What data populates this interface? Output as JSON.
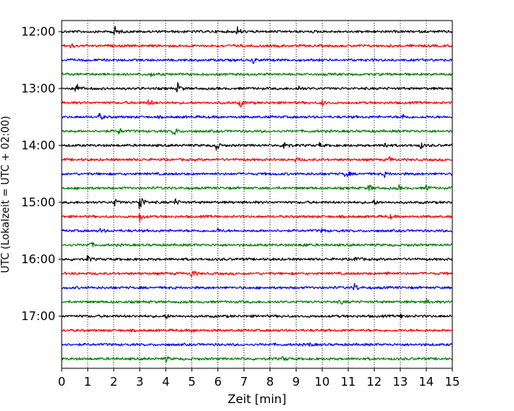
{
  "chart_data": {
    "type": "line",
    "title": "",
    "xlabel": "Zeit  [min]",
    "ylabel": "UTC (Lokalzeit = UTC + 02:00)",
    "xlim": [
      0,
      15
    ],
    "x_ticks": [
      0,
      1,
      2,
      3,
      4,
      5,
      6,
      7,
      8,
      9,
      10,
      11,
      12,
      13,
      14,
      15
    ],
    "y_tick_labels": [
      "12:00",
      "13:00",
      "14:00",
      "15:00",
      "16:00",
      "17:00"
    ],
    "grid": "vertical dotted lines at each minute",
    "trace_colors": [
      "#000000",
      "#ff0000",
      "#0000ff",
      "#008000"
    ],
    "traces": [
      {
        "start": "12:00",
        "color": "#000000",
        "events": [
          [
            2.0,
            1.0
          ],
          [
            6.75,
            0.55
          ]
        ]
      },
      {
        "start": "12:15",
        "color": "#ff0000",
        "events": [
          [
            0.35,
            0.35
          ]
        ]
      },
      {
        "start": "12:30",
        "color": "#0000ff",
        "events": [
          [
            7.35,
            0.4
          ]
        ]
      },
      {
        "start": "12:45",
        "color": "#008000",
        "events": [
          [
            3.4,
            0.3
          ]
        ]
      },
      {
        "start": "13:00",
        "color": "#000000",
        "events": [
          [
            0.55,
            0.8
          ],
          [
            4.45,
            0.7
          ],
          [
            9.1,
            0.35
          ]
        ]
      },
      {
        "start": "13:15",
        "color": "#ff0000",
        "events": [
          [
            3.35,
            0.5
          ],
          [
            6.85,
            0.6
          ],
          [
            10.0,
            0.35
          ]
        ]
      },
      {
        "start": "13:30",
        "color": "#0000ff",
        "events": [
          [
            1.45,
            0.45
          ],
          [
            13.1,
            0.35
          ]
        ]
      },
      {
        "start": "13:45",
        "color": "#008000",
        "events": [
          [
            2.2,
            0.45
          ],
          [
            4.3,
            0.75
          ]
        ]
      },
      {
        "start": "14:00",
        "color": "#000000",
        "events": [
          [
            5.9,
            0.85
          ],
          [
            8.55,
            1.0
          ],
          [
            9.9,
            0.3
          ],
          [
            12.4,
            0.4
          ],
          [
            13.8,
            0.35
          ]
        ]
      },
      {
        "start": "14:15",
        "color": "#ff0000",
        "events": [
          [
            9.0,
            0.3
          ],
          [
            12.6,
            0.3
          ]
        ]
      },
      {
        "start": "14:30",
        "color": "#0000ff",
        "events": [
          [
            10.9,
            0.55
          ],
          [
            12.4,
            0.3
          ]
        ]
      },
      {
        "start": "14:45",
        "color": "#008000",
        "events": [
          [
            11.8,
            0.5
          ],
          [
            12.9,
            0.4
          ],
          [
            14.0,
            0.4
          ]
        ]
      },
      {
        "start": "15:00",
        "color": "#000000",
        "events": [
          [
            2.0,
            0.6
          ],
          [
            3.0,
            1.6
          ],
          [
            4.35,
            0.45
          ],
          [
            12.0,
            0.3
          ]
        ]
      },
      {
        "start": "15:15",
        "color": "#ff0000",
        "events": [
          [
            3.0,
            0.6
          ],
          [
            12.6,
            0.25
          ]
        ]
      },
      {
        "start": "15:30",
        "color": "#0000ff",
        "events": [
          [
            1.5,
            0.3
          ],
          [
            6.0,
            0.25
          ],
          [
            10.0,
            0.25
          ]
        ]
      },
      {
        "start": "15:45",
        "color": "#008000",
        "events": [
          [
            1.1,
            0.35
          ],
          [
            9.3,
            0.25
          ]
        ]
      },
      {
        "start": "16:00",
        "color": "#000000",
        "events": [
          [
            1.0,
            0.45
          ],
          [
            11.3,
            0.45
          ]
        ]
      },
      {
        "start": "16:15",
        "color": "#ff0000",
        "events": [
          [
            5.0,
            0.6
          ],
          [
            12.5,
            0.3
          ]
        ]
      },
      {
        "start": "16:30",
        "color": "#0000ff",
        "events": [
          [
            11.25,
            0.55
          ]
        ]
      },
      {
        "start": "16:45",
        "color": "#008000",
        "events": [
          [
            10.7,
            0.3
          ],
          [
            14.0,
            0.3
          ]
        ]
      },
      {
        "start": "17:00",
        "color": "#000000",
        "events": [
          [
            4.0,
            0.3
          ],
          [
            13.0,
            0.3
          ]
        ]
      },
      {
        "start": "17:15",
        "color": "#ff0000",
        "events": [
          [
            5.0,
            0.25
          ]
        ]
      },
      {
        "start": "17:30",
        "color": "#0000ff",
        "events": [
          [
            9.5,
            0.25
          ]
        ]
      },
      {
        "start": "17:45",
        "color": "#008000",
        "events": [
          [
            8.5,
            0.3
          ],
          [
            4.0,
            0.3
          ]
        ]
      }
    ]
  }
}
